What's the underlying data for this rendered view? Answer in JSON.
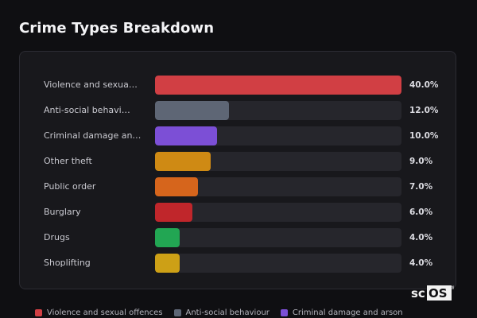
{
  "title": "Crime Types Breakdown",
  "chart_data": {
    "type": "bar",
    "orientation": "horizontal",
    "categories": [
      "Violence and sexua…",
      "Anti-social behavi…",
      "Criminal damage an…",
      "Other theft",
      "Public order",
      "Burglary",
      "Drugs",
      "Shoplifting"
    ],
    "values": [
      40.0,
      12.0,
      10.0,
      9.0,
      7.0,
      6.0,
      4.0,
      4.0
    ],
    "value_labels": [
      "40.0%",
      "12.0%",
      "10.0%",
      "9.0%",
      "7.0%",
      "6.0%",
      "4.0%",
      "4.0%"
    ],
    "colors": [
      "#d13f44",
      "#5e6675",
      "#7c4fd6",
      "#cf8a14",
      "#d6651c",
      "#c0262b",
      "#22a653",
      "#cda016"
    ],
    "xlim": [
      0,
      40
    ],
    "legend": {
      "position": "bottom",
      "entries": [
        {
          "label": "Violence and sexual offences",
          "color": "#d13f44"
        },
        {
          "label": "Anti-social behaviour",
          "color": "#5e6675"
        },
        {
          "label": "Criminal damage and arson",
          "color": "#7c4fd6"
        }
      ]
    }
  },
  "watermark": {
    "text": "scOS",
    "mark": "®"
  }
}
